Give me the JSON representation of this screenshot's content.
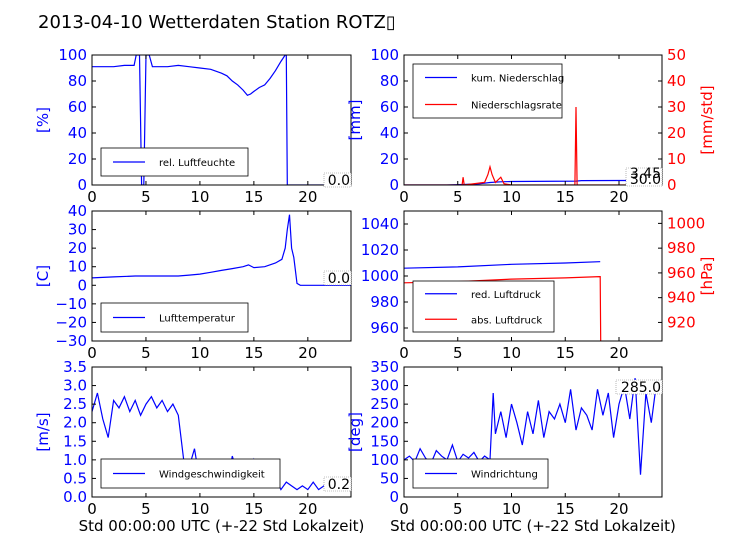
{
  "figure": {
    "title": "2013-04-10 Wetterdaten Station ROTZ▯"
  },
  "colors": {
    "primary": "#0000ff",
    "secondary": "#ff0000",
    "axis": "#000000",
    "legend_border": "#000000"
  },
  "chart_data": [
    {
      "id": "humidity",
      "type": "line",
      "title": "",
      "xlabel": "",
      "ylabel": "[%]",
      "xlim": [
        0,
        24
      ],
      "ylim": [
        0,
        100
      ],
      "xticks": [
        "0",
        "5",
        "10",
        "15",
        "20"
      ],
      "yticks": [
        "0",
        "20",
        "40",
        "60",
        "80",
        "100"
      ],
      "legend_position": "lower-left",
      "value_label": "0.0",
      "series": [
        {
          "name": "rel. Luftfeuchte",
          "axis": "left",
          "color": "#0000ff",
          "x": [
            0,
            1,
            2,
            3,
            3.9,
            4.1,
            4.4,
            4.6,
            4.8,
            5.0,
            5.3,
            5.6,
            6,
            7,
            8,
            9,
            10,
            11,
            12,
            12.5,
            13,
            13.5,
            14,
            14.4,
            14.7,
            15,
            15.5,
            16,
            16.5,
            17,
            17.5,
            17.9,
            18.0,
            18.1,
            24
          ],
          "y": [
            91,
            91,
            91,
            92,
            92,
            100,
            100,
            0,
            0,
            100,
            100,
            91,
            91,
            91,
            92,
            91,
            90,
            89,
            86,
            84,
            80,
            77,
            73,
            69,
            70,
            72,
            75,
            77,
            82,
            88,
            95,
            100,
            100,
            0,
            0
          ]
        }
      ]
    },
    {
      "id": "precipitation",
      "type": "line",
      "title": "",
      "xlabel": "",
      "ylabel": "[mm]",
      "ylabel_right": "[mm/std]",
      "xlim": [
        0,
        24
      ],
      "ylim": [
        0,
        100
      ],
      "ylim_right": [
        0,
        50
      ],
      "xticks": [
        "0",
        "5",
        "10",
        "15",
        "20"
      ],
      "yticks": [
        "0",
        "20",
        "40",
        "60",
        "80",
        "100"
      ],
      "yticks_right": [
        "0",
        "10",
        "20",
        "30",
        "40",
        "50"
      ],
      "legend_position": "upper-left",
      "value_labels": [
        "3.45",
        "30.0"
      ],
      "series": [
        {
          "name": "kum. Niederschlag",
          "axis": "left",
          "color": "#0000ff",
          "x": [
            0,
            4,
            5.5,
            7,
            8,
            9,
            10,
            16,
            16.5,
            20,
            24
          ],
          "y": [
            0,
            0,
            0.4,
            0.9,
            1.9,
            2.5,
            2.7,
            3.0,
            3.4,
            3.45,
            3.45
          ]
        },
        {
          "name": "Niederschlagsrate",
          "axis": "right",
          "color": "#ff0000",
          "x": [
            0,
            5.4,
            5.5,
            5.6,
            7.5,
            7.8,
            8.0,
            8.2,
            8.5,
            9.0,
            9.3,
            10,
            15.9,
            16.0,
            16.1,
            24
          ],
          "y": [
            0,
            0,
            3,
            0,
            1,
            4,
            7,
            4,
            1,
            3,
            0.5,
            0,
            0,
            30,
            0,
            0
          ]
        }
      ]
    },
    {
      "id": "temperature",
      "type": "line",
      "title": "",
      "xlabel": "",
      "ylabel": "[C]",
      "xlim": [
        0,
        24
      ],
      "ylim": [
        -30,
        40
      ],
      "xticks": [
        "0",
        "5",
        "10",
        "15",
        "20"
      ],
      "yticks": [
        "−30",
        "−20",
        "−10",
        "0",
        "10",
        "20",
        "30",
        "40"
      ],
      "legend_position": "lower-left",
      "value_label": "0.0",
      "series": [
        {
          "name": "Lufttemperatur",
          "axis": "left",
          "color": "#0000ff",
          "x": [
            0,
            2,
            4,
            6,
            8,
            9,
            10,
            11,
            12,
            13,
            14,
            14.5,
            15,
            16,
            17,
            17.6,
            17.9,
            18.1,
            18.3,
            18.5,
            18.7,
            19.0,
            19.3,
            20,
            24
          ],
          "y": [
            4,
            4.5,
            5,
            5,
            5,
            5.5,
            6,
            7,
            8,
            9,
            10,
            11,
            9.5,
            10,
            12,
            14,
            20,
            30,
            38,
            20,
            15,
            1,
            0,
            0,
            0
          ]
        }
      ]
    },
    {
      "id": "pressure",
      "type": "line",
      "title": "",
      "xlabel": "",
      "ylabel": "",
      "ylabel_right": "[hPa]",
      "xlim": [
        0,
        24
      ],
      "ylim": [
        950,
        1050
      ],
      "ylim_right": [
        905,
        1010
      ],
      "xticks": [
        "0",
        "5",
        "10",
        "15",
        "20"
      ],
      "yticks": [
        "960",
        "980",
        "1000",
        "1020",
        "1040"
      ],
      "yticks_right": [
        "920",
        "940",
        "960",
        "980",
        "1000"
      ],
      "legend_position": "lower-left",
      "series": [
        {
          "name": "red. Luftdruck",
          "axis": "left",
          "color": "#0000ff",
          "x": [
            0,
            5,
            10,
            15,
            18.2,
            18.25
          ],
          "y": [
            1006,
            1007,
            1009,
            1010,
            1011,
            1011
          ]
        },
        {
          "name": "abs. Luftdruck",
          "axis": "right",
          "color": "#ff0000",
          "x": [
            0,
            5,
            10,
            15,
            18.2,
            18.25,
            18.3
          ],
          "y": [
            952,
            953,
            955,
            956,
            957,
            957,
            905
          ]
        }
      ]
    },
    {
      "id": "wind_speed",
      "type": "line",
      "title": "",
      "xlabel": "Std 00:00:00 UTC (+-22 Std Lokalzeit)",
      "ylabel": "[m/s]",
      "xlim": [
        0,
        24
      ],
      "ylim": [
        0,
        3.5
      ],
      "xticks": [
        "0",
        "5",
        "10",
        "15",
        "20"
      ],
      "yticks": [
        "0.0",
        "0.5",
        "1.0",
        "1.5",
        "2.0",
        "2.5",
        "3.0",
        "3.5"
      ],
      "legend_position": "lower-left",
      "value_label": "0.2",
      "series": [
        {
          "name": "Windgeschwindigkeit",
          "axis": "left",
          "color": "#0000ff",
          "x": [
            0,
            0.5,
            1,
            1.5,
            2,
            2.5,
            3,
            3.5,
            4,
            4.5,
            5,
            5.5,
            6,
            6.5,
            7,
            7.5,
            8,
            8.5,
            9,
            9.5,
            10,
            10.5,
            11,
            11.5,
            12,
            12.5,
            13,
            13.5,
            14,
            14.5,
            15,
            15.5,
            16,
            16.5,
            17,
            17.5,
            18,
            18.5,
            19,
            19.5,
            20,
            20.5,
            21,
            21.5,
            22,
            22.5,
            23,
            23.5,
            24
          ],
          "y": [
            2.3,
            2.8,
            2.1,
            1.6,
            2.6,
            2.4,
            2.7,
            2.3,
            2.6,
            2.2,
            2.5,
            2.7,
            2.4,
            2.6,
            2.3,
            2.5,
            2.2,
            1.0,
            0.8,
            1.3,
            0.4,
            1.0,
            0.9,
            0.5,
            0.8,
            0.3,
            1.1,
            0.6,
            0.9,
            0.4,
            1.0,
            0.5,
            0.8,
            0.3,
            0.5,
            0.2,
            0.4,
            0.3,
            0.2,
            0.3,
            0.2,
            0.4,
            0.2,
            0.3,
            0.2,
            0.3,
            0.2,
            0.25,
            0.2
          ]
        }
      ]
    },
    {
      "id": "wind_direction",
      "type": "line",
      "title": "",
      "xlabel": "Std 00:00:00 UTC (+-22 Std Lokalzeit)",
      "ylabel": "[deg]",
      "xlim": [
        0,
        24
      ],
      "ylim": [
        0,
        350
      ],
      "xticks": [
        "0",
        "5",
        "10",
        "15",
        "20"
      ],
      "yticks": [
        "0",
        "50",
        "100",
        "150",
        "200",
        "250",
        "300",
        "350"
      ],
      "legend_position": "lower-left",
      "value_label": "285.0",
      "series": [
        {
          "name": "Windrichtung",
          "axis": "left",
          "color": "#0000ff",
          "x": [
            0,
            0.5,
            1,
            1.5,
            2,
            2.5,
            3,
            3.5,
            4,
            4.5,
            5,
            5.5,
            6,
            6.5,
            7,
            7.5,
            8,
            8.3,
            8.5,
            9,
            9.5,
            10,
            10.5,
            11,
            11.5,
            12,
            12.5,
            13,
            13.5,
            14,
            14.5,
            15,
            15.5,
            16,
            16.5,
            17,
            17.5,
            18,
            18.5,
            19,
            19.5,
            20,
            20.5,
            21,
            21.5,
            22,
            22.5,
            23,
            23.5,
            24
          ],
          "y": [
            100,
            110,
            95,
            130,
            105,
            90,
            125,
            110,
            100,
            140,
            95,
            115,
            105,
            120,
            95,
            110,
            100,
            280,
            170,
            230,
            160,
            250,
            200,
            140,
            230,
            170,
            260,
            160,
            230,
            210,
            250,
            200,
            290,
            180,
            240,
            220,
            180,
            290,
            220,
            280,
            160,
            250,
            300,
            210,
            320,
            60,
            280,
            200,
            310,
            285
          ]
        }
      ]
    }
  ]
}
